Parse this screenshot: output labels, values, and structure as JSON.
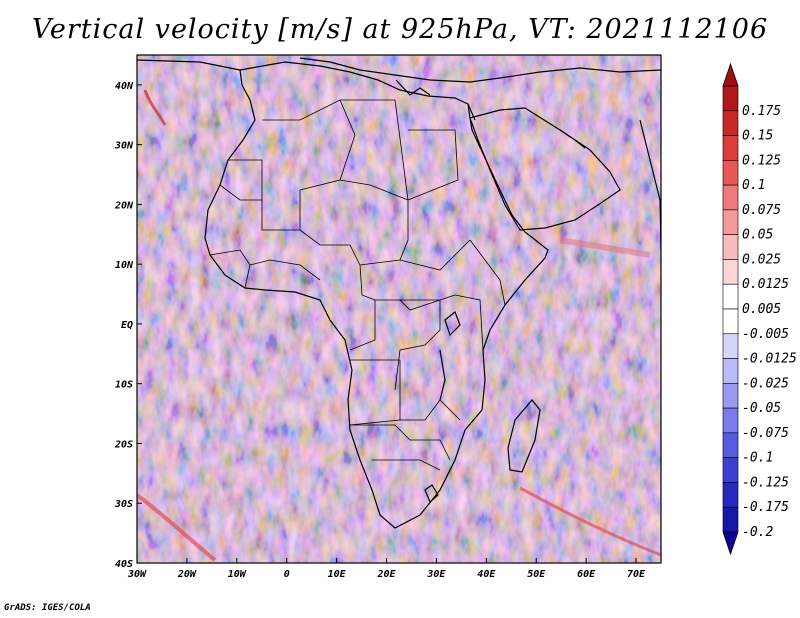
{
  "title": "Vertical velocity [m/s] at 925hPa, VT: 2021112106",
  "credit": "GrADS: IGES/COLA",
  "map": {
    "variable": "Vertical velocity",
    "units": "m/s",
    "level": "925hPa",
    "valid_time": "2021112106",
    "lat_range": [
      -40,
      45
    ],
    "lon_range": [
      -30,
      75
    ],
    "lat_ticks": [
      {
        "value": 40,
        "label": "40N"
      },
      {
        "value": 30,
        "label": "30N"
      },
      {
        "value": 20,
        "label": "20N"
      },
      {
        "value": 10,
        "label": "10N"
      },
      {
        "value": 0,
        "label": "EQ"
      },
      {
        "value": -10,
        "label": "10S"
      },
      {
        "value": -20,
        "label": "20S"
      },
      {
        "value": -30,
        "label": "30S"
      },
      {
        "value": -40,
        "label": "40S"
      }
    ],
    "lon_ticks": [
      {
        "value": -30,
        "label": "30W"
      },
      {
        "value": -20,
        "label": "20W"
      },
      {
        "value": -10,
        "label": "10W"
      },
      {
        "value": 0,
        "label": "0"
      },
      {
        "value": 10,
        "label": "10E"
      },
      {
        "value": 20,
        "label": "20E"
      },
      {
        "value": 30,
        "label": "30E"
      },
      {
        "value": 40,
        "label": "40E"
      },
      {
        "value": 50,
        "label": "50E"
      },
      {
        "value": 60,
        "label": "60E"
      },
      {
        "value": 70,
        "label": "70E"
      }
    ]
  },
  "colorbar": {
    "levels": [
      {
        "label": "0.175",
        "color": "#b01818"
      },
      {
        "label": "0.15",
        "color": "#c82828"
      },
      {
        "label": "0.125",
        "color": "#dc3c3c"
      },
      {
        "label": "0.1",
        "color": "#e85858"
      },
      {
        "label": "0.075",
        "color": "#ee7a7a"
      },
      {
        "label": "0.05",
        "color": "#f49a9a"
      },
      {
        "label": "0.025",
        "color": "#f8baba"
      },
      {
        "label": "0.0125",
        "color": "#fbd6d6"
      },
      {
        "label": "0.005",
        "color": "#ffffff"
      },
      {
        "label": "-0.005",
        "color": "#ffffff"
      },
      {
        "label": "-0.0125",
        "color": "#d6d6fb"
      },
      {
        "label": "-0.025",
        "color": "#babaf8"
      },
      {
        "label": "-0.05",
        "color": "#9a9af2"
      },
      {
        "label": "-0.075",
        "color": "#7a7aea"
      },
      {
        "label": "-0.1",
        "color": "#5a5ae0"
      },
      {
        "label": "-0.125",
        "color": "#3e3ed2"
      },
      {
        "label": "-0.175",
        "color": "#2828c0"
      },
      {
        "label": "-0.2",
        "color": "#1818a8"
      }
    ],
    "top_arrow_color": "#a01010",
    "bottom_arrow_color": "#100098"
  }
}
